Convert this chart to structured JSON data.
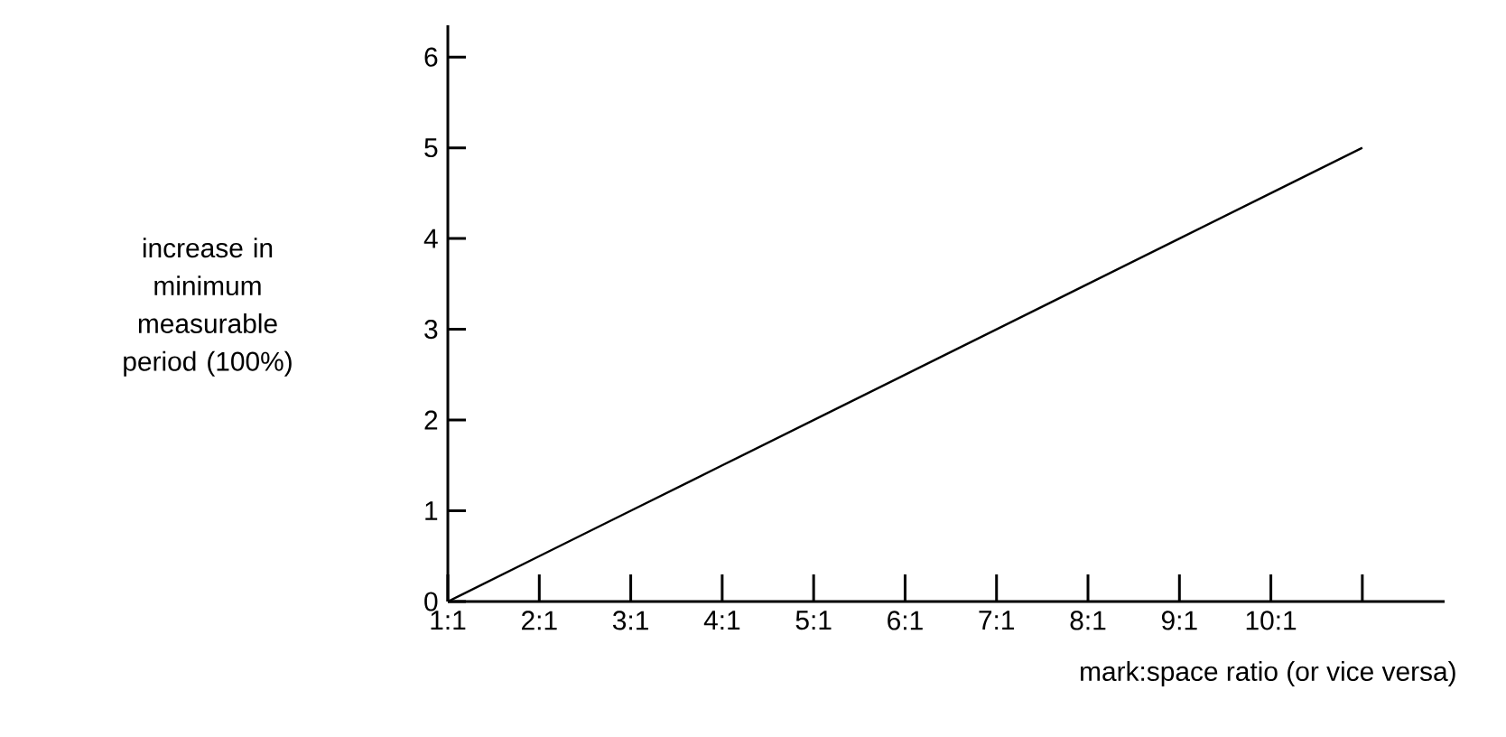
{
  "chart_data": {
    "type": "line",
    "categories": [
      "1:1",
      "2:1",
      "3:1",
      "4:1",
      "5:1",
      "6:1",
      "7:1",
      "8:1",
      "9:1",
      "10:1",
      null
    ],
    "values": [
      0,
      0.5,
      1,
      1.5,
      2,
      2.5,
      3,
      3.5,
      4,
      4.5,
      5
    ],
    "color": "#000000",
    "ylim": [
      0,
      6.35
    ],
    "yticks": [
      0,
      1,
      2,
      3,
      4,
      5,
      6
    ],
    "xlabel": "mark:space ratio (or vice versa)",
    "ylabel": "increase in minimum measurable period (100%)"
  }
}
